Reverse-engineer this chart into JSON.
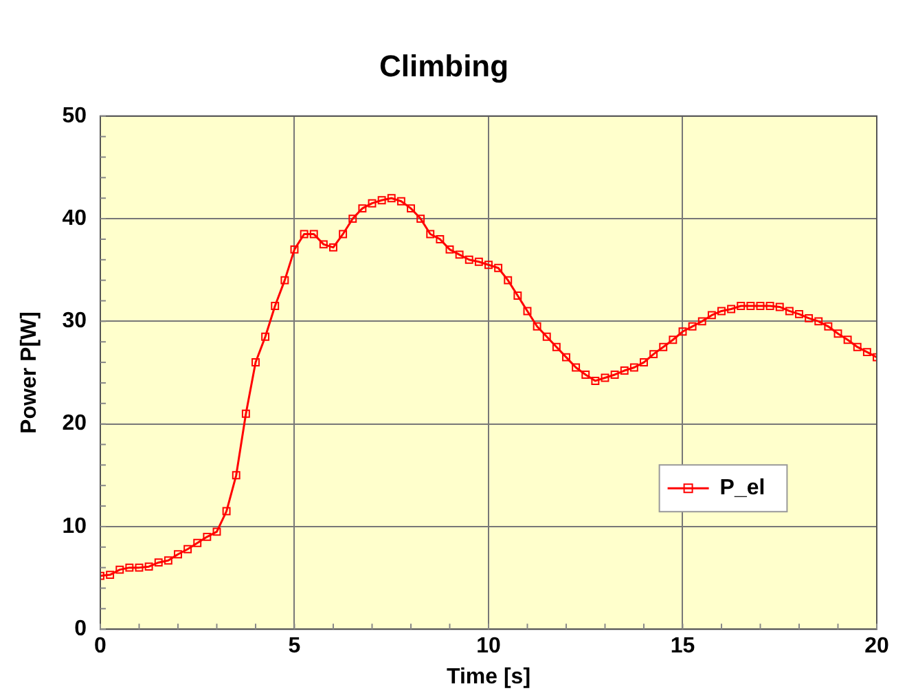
{
  "chart_data": {
    "type": "line",
    "title": "Climbing",
    "xlabel": "Time [s]",
    "ylabel": "Power P[W]",
    "x": [
      0,
      0.25,
      0.5,
      0.75,
      1,
      1.25,
      1.5,
      1.75,
      2,
      2.25,
      2.5,
      2.75,
      3,
      3.25,
      3.5,
      3.75,
      4,
      4.25,
      4.5,
      4.75,
      5,
      5.25,
      5.5,
      5.75,
      6,
      6.25,
      6.5,
      6.75,
      7,
      7.25,
      7.5,
      7.75,
      8,
      8.25,
      8.5,
      8.75,
      9,
      9.25,
      9.5,
      9.75,
      10,
      10.25,
      10.5,
      10.75,
      11,
      11.25,
      11.5,
      11.75,
      12,
      12.25,
      12.5,
      12.75,
      13,
      13.25,
      13.5,
      13.75,
      14,
      14.25,
      14.5,
      14.75,
      15,
      15.25,
      15.5,
      15.75,
      16,
      16.25,
      16.5,
      16.75,
      17,
      17.25,
      17.5,
      17.75,
      18,
      18.25,
      18.5,
      18.75,
      19,
      19.25,
      19.5,
      19.75,
      20
    ],
    "series": [
      {
        "name": "P_el",
        "color": "#ff0000",
        "values": [
          5.2,
          5.3,
          5.8,
          6.0,
          6.0,
          6.1,
          6.5,
          6.7,
          7.3,
          7.8,
          8.4,
          9.0,
          9.5,
          11.5,
          15,
          21,
          26,
          28.5,
          31.5,
          34,
          37,
          38.5,
          38.5,
          37.5,
          37.2,
          38.5,
          40,
          41,
          41.5,
          41.8,
          42,
          41.7,
          41,
          40,
          38.5,
          38,
          37,
          36.5,
          36,
          35.8,
          35.5,
          35.2,
          34,
          32.5,
          31,
          29.5,
          28.5,
          27.5,
          26.5,
          25.5,
          24.8,
          24.2,
          24.5,
          24.8,
          25.2,
          25.5,
          26,
          26.8,
          27.5,
          28.2,
          29,
          29.5,
          30,
          30.6,
          31,
          31.2,
          31.5,
          31.5,
          31.5,
          31.5,
          31.4,
          31,
          30.7,
          30.3,
          30,
          29.5,
          28.8,
          28.2,
          27.5,
          27,
          26.5
        ]
      }
    ],
    "xlim": [
      0,
      20
    ],
    "xticks": [
      0,
      5,
      10,
      15,
      20
    ],
    "ylim": [
      0,
      50
    ],
    "yticks": [
      0,
      10,
      20,
      30,
      40,
      50
    ],
    "grid": true,
    "legend": "right",
    "marker": "square",
    "line_style": "solid"
  }
}
